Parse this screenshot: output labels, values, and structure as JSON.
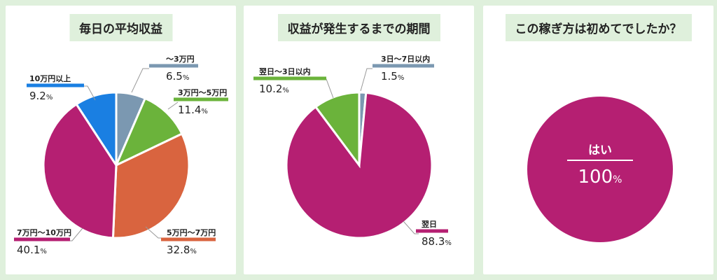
{
  "colors": {
    "magenta": "#b51f72",
    "green": "#6bb33b",
    "orange": "#d9643f",
    "gray_blue": "#7b98b1",
    "blue": "#1a7fe2"
  },
  "chart_data": [
    {
      "type": "pie",
      "title": "毎日の平均収益",
      "unit": "%",
      "slices": [
        {
          "label": "～3万円",
          "value": 6.5,
          "display": "6.5",
          "color": "#7b98b1"
        },
        {
          "label": "3万円～5万円",
          "value": 11.4,
          "display": "11.4",
          "color": "#6bb33b"
        },
        {
          "label": "5万円～7万円",
          "value": 32.8,
          "display": "32.8",
          "color": "#d9643f"
        },
        {
          "label": "7万円～10万円",
          "value": 40.1,
          "display": "40.1",
          "color": "#b51f72"
        },
        {
          "label": "10万円以上",
          "value": 9.2,
          "display": "9.2",
          "color": "#1a7fe2"
        }
      ]
    },
    {
      "type": "pie",
      "title": "収益が発生するまでの期間",
      "unit": "%",
      "slices": [
        {
          "label": "3日～7日以内",
          "value": 1.5,
          "display": "1.5",
          "color": "#7b98b1"
        },
        {
          "label": "翌日",
          "value": 88.3,
          "display": "88.3",
          "color": "#b51f72"
        },
        {
          "label": "翌日～3日以内",
          "value": 10.2,
          "display": "10.2",
          "color": "#6bb33b"
        }
      ]
    },
    {
      "type": "pie",
      "title": "この稼ぎ方は初めてでしたか？",
      "unit": "%",
      "slices": [
        {
          "label": "はい",
          "value": 100,
          "display": "100",
          "color": "#b51f72"
        }
      ]
    }
  ]
}
